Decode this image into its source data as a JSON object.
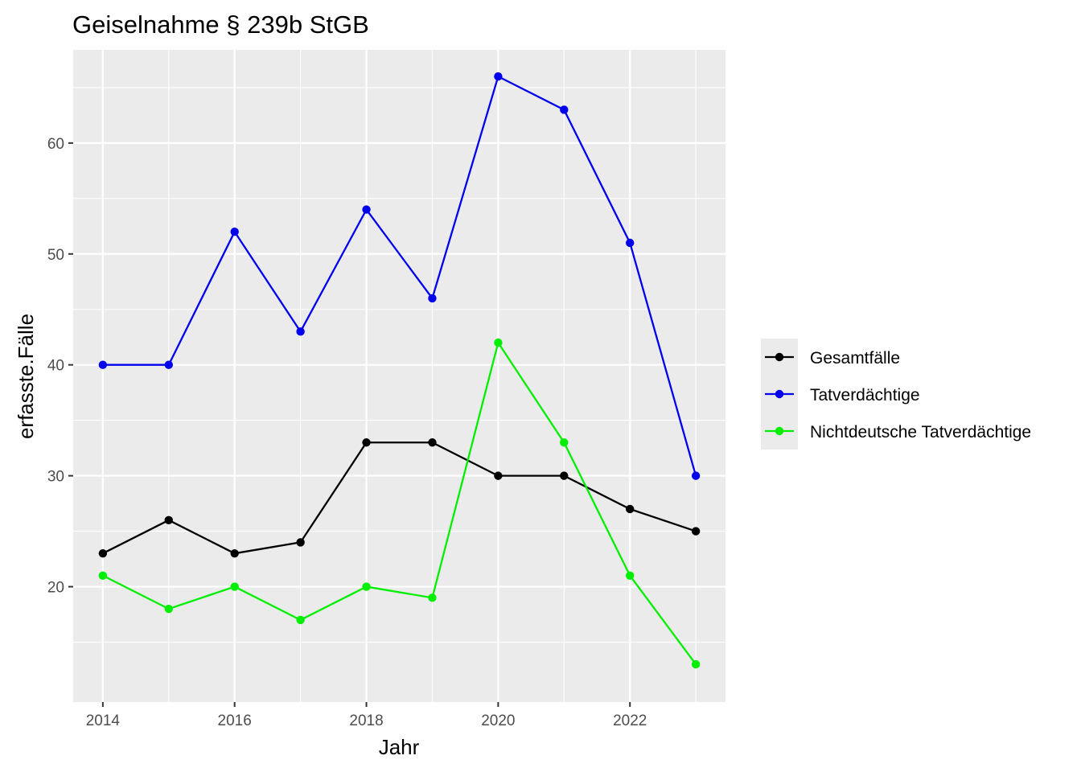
{
  "chart_data": {
    "type": "line",
    "title": "Geiselnahme § 239b StGB",
    "xlabel": "Jahr",
    "ylabel": "erfasste.Fälle",
    "x": [
      2014,
      2015,
      2016,
      2017,
      2018,
      2019,
      2020,
      2021,
      2022,
      2023
    ],
    "xlim": [
      2013.55,
      2023.45
    ],
    "ylim": [
      9.6,
      68.4
    ],
    "x_ticks": [
      2014,
      2016,
      2018,
      2020,
      2022
    ],
    "y_ticks": [
      20,
      30,
      40,
      50,
      60
    ],
    "x_tick_labels": [
      "2014",
      "2016",
      "2018",
      "2020",
      "2022"
    ],
    "y_tick_labels": [
      "20",
      "30",
      "40",
      "50",
      "60"
    ],
    "grid": true,
    "legend_position": "right",
    "panel_background": "#ebebeb",
    "series": [
      {
        "name": "Gesamtfälle",
        "color": "#000000",
        "values": [
          23,
          26,
          23,
          24,
          33,
          33,
          30,
          30,
          27,
          25
        ]
      },
      {
        "name": "Tatverdächtige",
        "color": "#0000ee",
        "values": [
          40,
          40,
          52,
          43,
          54,
          46,
          66,
          63,
          51,
          30
        ]
      },
      {
        "name": "Nichtdeutsche Tatverdächtige",
        "color": "#00ee00",
        "values": [
          21,
          18,
          20,
          17,
          20,
          19,
          42,
          33,
          21,
          13
        ]
      }
    ]
  }
}
